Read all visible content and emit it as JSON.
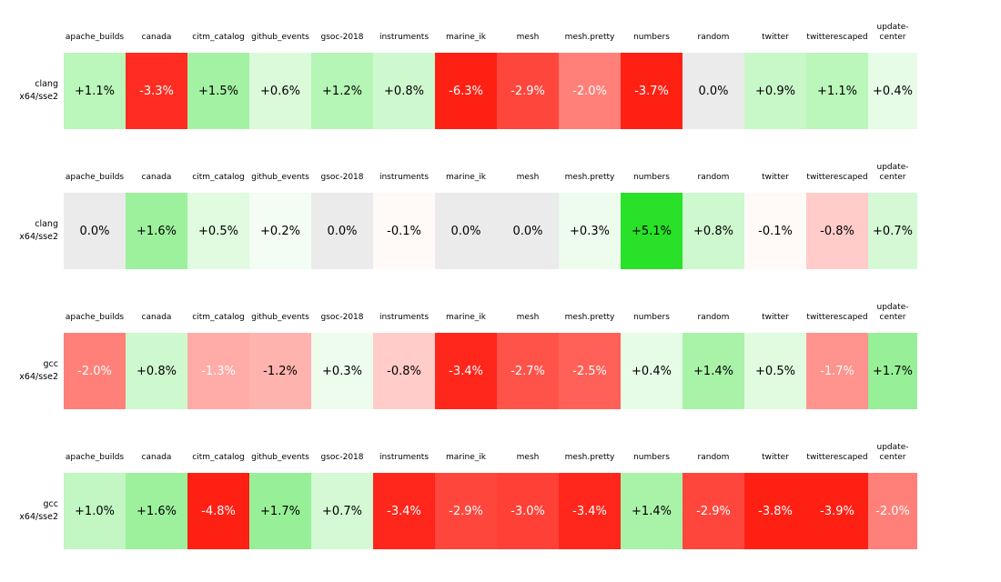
{
  "chart_data": {
    "type": "heatmap",
    "title": "",
    "value_unit": "%",
    "value_format": "signed_one_decimal_percent",
    "columns": [
      "apache_builds",
      "canada",
      "citm_catalog",
      "github_events",
      "gsoc-2018",
      "instruments",
      "marine_ik",
      "mesh",
      "mesh.pretty",
      "numbers",
      "random",
      "twitter",
      "twitterescaped",
      "update-center"
    ],
    "rows": [
      {
        "label": [
          "clang",
          "x64/sse2"
        ],
        "values": [
          1.1,
          -3.3,
          1.5,
          0.6,
          1.2,
          0.8,
          -6.3,
          -2.9,
          -2.0,
          -3.7,
          0.0,
          0.9,
          1.1,
          0.4
        ]
      },
      {
        "label": [
          "clang",
          "x64/sse2"
        ],
        "values": [
          0.0,
          1.6,
          0.5,
          0.2,
          0.0,
          -0.1,
          0.0,
          0.0,
          0.3,
          5.1,
          0.8,
          -0.1,
          -0.8,
          0.7
        ]
      },
      {
        "label": [
          "gcc",
          "x64/sse2"
        ],
        "values": [
          -2.0,
          0.8,
          -1.3,
          -1.2,
          0.3,
          -0.8,
          -3.4,
          -2.7,
          -2.5,
          0.4,
          1.4,
          0.5,
          -1.7,
          1.7
        ]
      },
      {
        "label": [
          "gcc",
          "x64/sse2"
        ],
        "values": [
          1.0,
          1.6,
          -4.8,
          1.7,
          0.7,
          -3.4,
          -2.9,
          -3.0,
          -3.4,
          1.4,
          -2.9,
          -3.8,
          -3.9,
          -2.0
        ]
      }
    ],
    "colors": {
      "positive_max": "#28e128",
      "negative_max": "#ff2014",
      "zero": "#ebebeb",
      "text_dark": "#000000",
      "text_light": "#ffffff"
    },
    "color_scale_max_abs": 3.5,
    "white_text_threshold": -1.3,
    "layout": {
      "legend": "none",
      "grid": "off",
      "row_label_position": "left",
      "column_headers_position": "top-of-each-panel"
    }
  }
}
